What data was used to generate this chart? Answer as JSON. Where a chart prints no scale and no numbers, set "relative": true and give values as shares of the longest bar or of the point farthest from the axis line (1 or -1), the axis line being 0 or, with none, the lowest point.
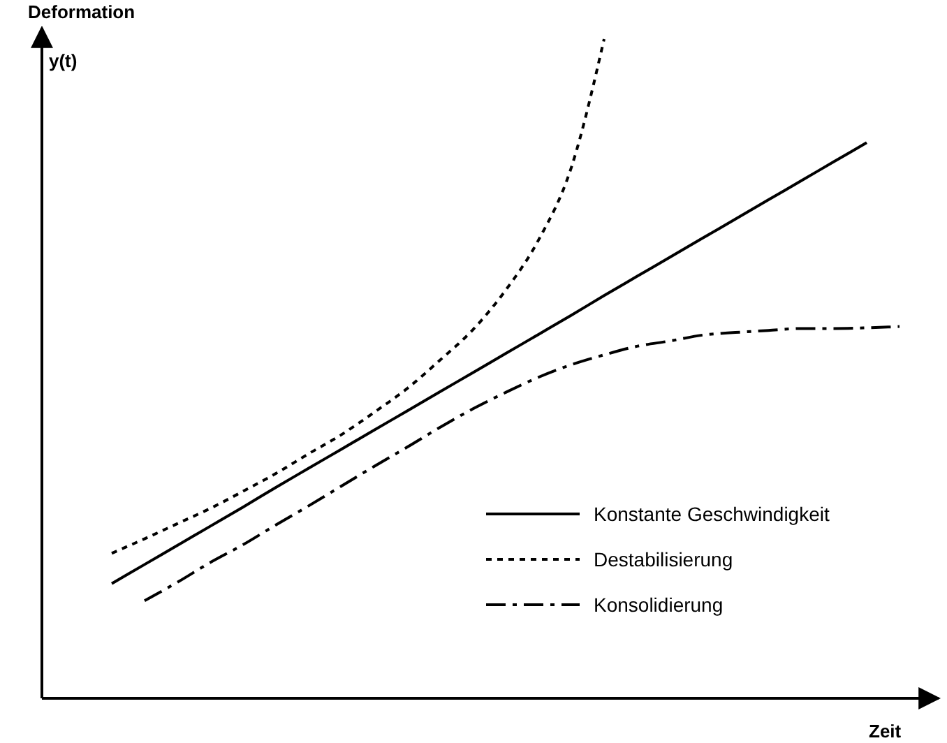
{
  "chart_data": {
    "type": "line",
    "relative": true,
    "ylabel": "Deformation",
    "xlabel": "Zeit",
    "annotations": [
      "y(t)"
    ],
    "legend": "bottom right",
    "categories": [
      null,
      null,
      null,
      null,
      null,
      null,
      null,
      null,
      null,
      null,
      null,
      null,
      null,
      null,
      null,
      null,
      null,
      null,
      null,
      null,
      null,
      null,
      null,
      null,
      null
    ],
    "series": [
      {
        "name": "Konstante Geschwindigkeit",
        "color": "#000000",
        "line_style": "solid",
        "values": [
          0.174,
          0.203,
          0.232,
          0.261,
          0.29,
          0.32,
          0.349,
          0.378,
          0.407,
          0.436,
          0.465,
          0.494,
          0.523,
          0.552,
          0.581,
          0.611,
          0.64,
          0.669,
          0.698,
          0.727,
          0.756,
          0.785,
          0.814,
          0.843,
          null
        ]
      },
      {
        "name": "Destabilisierung",
        "color": "#000000",
        "line_style": "dotted",
        "values": [
          0.22,
          0.242,
          0.265,
          0.288,
          0.314,
          0.341,
          0.371,
          0.4,
          0.434,
          0.47,
          0.513,
          0.559,
          0.619,
          0.695,
          0.805,
          1,
          null,
          null,
          null,
          null,
          null,
          null,
          null,
          null,
          null
        ]
      },
      {
        "name": "Konsolidierung",
        "color": "#000000",
        "line_style": "dashed",
        "values": [
          null,
          0.148,
          0.176,
          0.206,
          0.233,
          0.263,
          0.292,
          0.322,
          0.352,
          0.381,
          0.411,
          0.439,
          0.464,
          0.487,
          0.506,
          0.521,
          0.534,
          0.542,
          0.551,
          0.555,
          0.558,
          0.561,
          0.561,
          0.562,
          0.564
        ]
      }
    ]
  }
}
